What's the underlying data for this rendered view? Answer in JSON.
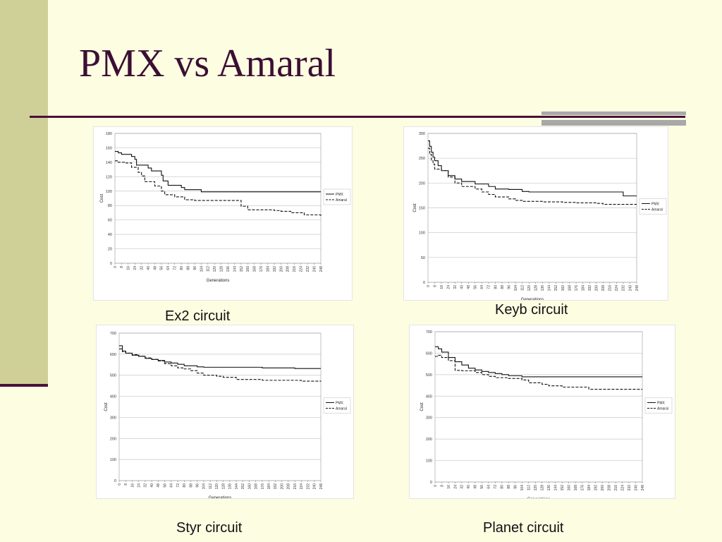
{
  "slide": {
    "title": "PMX vs Amaral"
  },
  "captions": {
    "ex2": "Ex2 circuit",
    "keyb": "Keyb circuit",
    "styr": "Styr circuit",
    "planet": "Planet circuit"
  },
  "chart_data": [
    {
      "type": "line",
      "xlabel": "Generations",
      "ylabel": "Cost",
      "x_ticks": [
        "0",
        "8",
        "16",
        "24",
        "32",
        "40",
        "48",
        "56",
        "64",
        "72",
        "80",
        "88",
        "96",
        "104",
        "112",
        "120",
        "128",
        "136",
        "144",
        "152",
        "160",
        "168",
        "176",
        "184",
        "192",
        "200",
        "208",
        "216",
        "224",
        "232",
        "240",
        "248"
      ],
      "y_ticks": [
        "0",
        "20",
        "40",
        "60",
        "80",
        "100",
        "120",
        "140",
        "160",
        "180"
      ],
      "ylim": [
        0,
        180
      ],
      "xlim": [
        0,
        248
      ],
      "legend": "right",
      "grid": true,
      "series": [
        {
          "name": "PMX",
          "style": "solid",
          "x": [
            0,
            4,
            8,
            20,
            24,
            26,
            40,
            44,
            56,
            58,
            64,
            80,
            84,
            104,
            248
          ],
          "y": [
            155,
            153,
            151,
            148,
            144,
            136,
            132,
            128,
            122,
            114,
            108,
            105,
            102,
            99,
            99
          ]
        },
        {
          "name": "Amaral",
          "style": "dashed",
          "x": [
            0,
            4,
            12,
            20,
            28,
            32,
            36,
            48,
            56,
            60,
            72,
            84,
            96,
            148,
            152,
            160,
            192,
            200,
            212,
            228,
            248
          ],
          "y": [
            142,
            140,
            139,
            133,
            126,
            121,
            113,
            107,
            100,
            95,
            92,
            88,
            87,
            87,
            79,
            74,
            73,
            72,
            70,
            67,
            65
          ]
        }
      ]
    },
    {
      "type": "line",
      "xlabel": "Generations",
      "ylabel": "Cost",
      "x_ticks": [
        "0",
        "8",
        "16",
        "24",
        "32",
        "40",
        "48",
        "56",
        "64",
        "72",
        "80",
        "88",
        "96",
        "104",
        "112",
        "120",
        "128",
        "136",
        "144",
        "152",
        "160",
        "168",
        "176",
        "184",
        "192",
        "200",
        "208",
        "216",
        "224",
        "232",
        "240",
        "248"
      ],
      "y_ticks": [
        "0",
        "50",
        "100",
        "150",
        "200",
        "250",
        "300"
      ],
      "ylim": [
        0,
        300
      ],
      "xlim": [
        0,
        248
      ],
      "legend": "right",
      "grid": true,
      "series": [
        {
          "name": "PMX",
          "style": "solid",
          "x": [
            0,
            2,
            4,
            6,
            8,
            12,
            16,
            24,
            32,
            40,
            56,
            72,
            80,
            96,
            112,
            120,
            224,
            232,
            248
          ],
          "y": [
            285,
            274,
            262,
            252,
            245,
            235,
            225,
            215,
            208,
            203,
            198,
            193,
            188,
            187,
            183,
            182,
            182,
            174,
            174
          ]
        },
        {
          "name": "Amaral",
          "style": "dashed",
          "x": [
            0,
            2,
            4,
            6,
            8,
            16,
            24,
            32,
            40,
            56,
            64,
            72,
            80,
            96,
            104,
            112,
            136,
            160,
            176,
            200,
            208,
            248
          ],
          "y": [
            270,
            258,
            245,
            238,
            228,
            225,
            212,
            200,
            193,
            188,
            182,
            177,
            172,
            168,
            165,
            163,
            162,
            161,
            160,
            159,
            157,
            157
          ]
        }
      ]
    },
    {
      "type": "line",
      "xlabel": "Generations",
      "ylabel": "Cost",
      "x_ticks": [
        "0",
        "8",
        "16",
        "24",
        "32",
        "40",
        "48",
        "56",
        "64",
        "72",
        "80",
        "88",
        "96",
        "104",
        "112",
        "120",
        "128",
        "136",
        "144",
        "152",
        "160",
        "168",
        "176",
        "184",
        "192",
        "200",
        "208",
        "216",
        "224",
        "232",
        "240",
        "248"
      ],
      "y_ticks": [
        "0",
        "100",
        "200",
        "300",
        "400",
        "500",
        "600",
        "700"
      ],
      "ylim": [
        0,
        700
      ],
      "xlim": [
        0,
        248
      ],
      "legend": "right",
      "grid": true,
      "series": [
        {
          "name": "PMX",
          "style": "solid",
          "x": [
            0,
            4,
            8,
            16,
            24,
            32,
            40,
            48,
            56,
            64,
            72,
            80,
            96,
            104,
            128,
            176,
            216,
            248
          ],
          "y": [
            640,
            615,
            605,
            595,
            590,
            580,
            575,
            570,
            563,
            558,
            552,
            545,
            540,
            538,
            538,
            535,
            532,
            532
          ]
        },
        {
          "name": "Amaral",
          "style": "dashed",
          "x": [
            0,
            4,
            8,
            16,
            24,
            32,
            40,
            48,
            56,
            64,
            72,
            80,
            88,
            96,
            104,
            120,
            128,
            144,
            176,
            224,
            248
          ],
          "y": [
            625,
            612,
            605,
            598,
            590,
            582,
            575,
            568,
            555,
            545,
            535,
            530,
            522,
            510,
            500,
            495,
            490,
            480,
            476,
            472,
            470
          ]
        }
      ]
    },
    {
      "type": "line",
      "xlabel": "Generations",
      "ylabel": "Cost",
      "x_ticks": [
        "0",
        "8",
        "16",
        "24",
        "32",
        "40",
        "48",
        "56",
        "64",
        "72",
        "80",
        "88",
        "96",
        "104",
        "112",
        "120",
        "128",
        "136",
        "144",
        "152",
        "160",
        "168",
        "176",
        "184",
        "192",
        "200",
        "208",
        "216",
        "224",
        "232",
        "240",
        "248"
      ],
      "y_ticks": [
        "0",
        "100",
        "200",
        "300",
        "400",
        "500",
        "600",
        "700"
      ],
      "ylim": [
        0,
        700
      ],
      "xlim": [
        0,
        248
      ],
      "legend": "right",
      "grid": true,
      "series": [
        {
          "name": "PMX",
          "style": "solid",
          "x": [
            0,
            4,
            8,
            16,
            24,
            32,
            40,
            48,
            56,
            64,
            72,
            80,
            88,
            104,
            248
          ],
          "y": [
            630,
            620,
            605,
            580,
            560,
            545,
            530,
            522,
            515,
            510,
            505,
            500,
            495,
            490,
            490
          ]
        },
        {
          "name": "Amaral",
          "style": "dashed",
          "x": [
            0,
            4,
            8,
            16,
            24,
            32,
            48,
            56,
            64,
            72,
            88,
            104,
            112,
            128,
            136,
            152,
            184,
            248
          ],
          "y": [
            585,
            590,
            580,
            565,
            520,
            518,
            510,
            500,
            492,
            486,
            482,
            475,
            462,
            455,
            448,
            442,
            432,
            432
          ]
        }
      ]
    }
  ]
}
